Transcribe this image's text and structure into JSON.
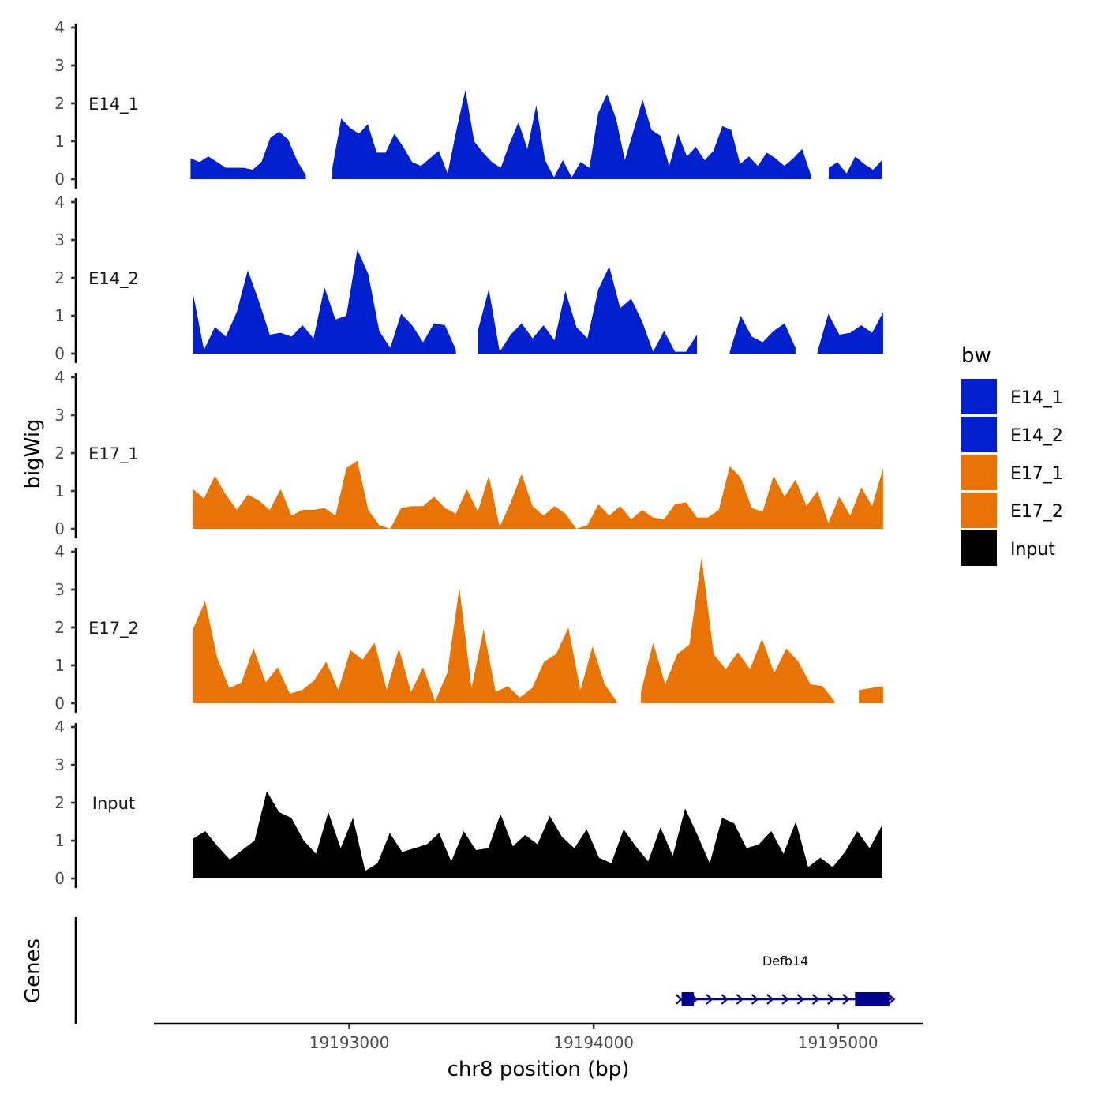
{
  "chart_data": {
    "type": "area",
    "title": "",
    "ylabel": "bigWig",
    "xlabel": "chr8 position (bp)",
    "genes_label": "Genes",
    "ylim": [
      0,
      4
    ],
    "y_ticks": [
      "0",
      "1",
      "2",
      "3",
      "4"
    ],
    "xlim": [
      19192200,
      19195350
    ],
    "x_ticks": [
      {
        "value": 19193000,
        "label": "19193000"
      },
      {
        "value": 19194000,
        "label": "19194000"
      },
      {
        "value": 19195000,
        "label": "19195000"
      }
    ],
    "legend": {
      "title": "bw",
      "position": "right",
      "entries": [
        {
          "label": "E14_1",
          "color": "#0020d0"
        },
        {
          "label": "E14_2",
          "color": "#0020d0"
        },
        {
          "label": "E17_1",
          "color": "#e87405"
        },
        {
          "label": "E17_2",
          "color": "#e87405"
        },
        {
          "label": "Input",
          "color": "#000000"
        }
      ]
    },
    "series": [
      {
        "name": "E14_1",
        "color": "#0020d0",
        "x_start": 19192350,
        "x_end": 19195180,
        "values": [
          0.55,
          0.45,
          0.6,
          0.45,
          0.3,
          0.3,
          0.3,
          0.25,
          0.45,
          1.1,
          1.25,
          1.05,
          0.5,
          0.1,
          null,
          null,
          0.3,
          1.6,
          1.35,
          1.2,
          1.45,
          0.7,
          0.7,
          1.2,
          0.85,
          0.45,
          0.35,
          0.55,
          0.75,
          0.15,
          1.3,
          2.35,
          1.0,
          0.7,
          0.45,
          0.3,
          0.95,
          1.5,
          0.8,
          1.95,
          0.5,
          0.05,
          0.5,
          0.05,
          0.45,
          0.3,
          1.75,
          2.25,
          1.6,
          0.5,
          1.3,
          2.1,
          1.3,
          1.15,
          0.35,
          1.2,
          0.6,
          0.85,
          0.5,
          0.75,
          1.4,
          1.3,
          0.4,
          0.6,
          0.35,
          0.7,
          0.55,
          0.35,
          0.55,
          0.8,
          0.1,
          null,
          0.3,
          0.45,
          0.15,
          0.6,
          0.4,
          0.25,
          0.5
        ]
      },
      {
        "name": "E14_2",
        "color": "#0020d0",
        "x_start": 19192360,
        "x_end": 19195185,
        "values": [
          1.6,
          0.1,
          0.7,
          0.45,
          1.1,
          2.2,
          1.4,
          0.5,
          0.55,
          0.45,
          0.75,
          0.4,
          1.75,
          0.9,
          1.0,
          2.75,
          2.1,
          0.6,
          0.15,
          1.05,
          0.75,
          0.3,
          0.8,
          0.75,
          0.1,
          null,
          0.6,
          1.7,
          0.05,
          0.5,
          0.8,
          0.4,
          0.75,
          0.35,
          1.65,
          0.7,
          0.4,
          1.7,
          2.3,
          1.2,
          1.45,
          0.85,
          0.05,
          0.6,
          0.05,
          0.05,
          0.5,
          null,
          null,
          0.05,
          1.0,
          0.45,
          0.3,
          0.6,
          0.8,
          0.15,
          null,
          0.05,
          1.05,
          0.5,
          0.55,
          0.75,
          0.55,
          1.1
        ]
      },
      {
        "name": "E17_1",
        "color": "#e87405",
        "x_start": 19192360,
        "x_end": 19195185,
        "values": [
          1.05,
          0.8,
          1.4,
          0.9,
          0.5,
          0.9,
          0.75,
          0.5,
          1.05,
          0.35,
          0.5,
          0.5,
          0.55,
          0.35,
          1.6,
          1.8,
          0.5,
          0.1,
          0.0,
          0.55,
          0.6,
          0.6,
          0.85,
          0.55,
          0.4,
          1.05,
          0.45,
          1.4,
          0.05,
          0.7,
          1.45,
          0.6,
          0.35,
          0.6,
          0.4,
          0.0,
          0.1,
          0.65,
          0.35,
          0.6,
          0.25,
          0.5,
          0.3,
          0.25,
          0.65,
          0.7,
          0.3,
          0.3,
          0.5,
          1.65,
          1.35,
          0.55,
          0.45,
          1.4,
          0.85,
          1.3,
          0.6,
          1.0,
          0.15,
          0.85,
          0.35,
          1.1,
          0.6,
          1.6
        ]
      },
      {
        "name": "E17_2",
        "color": "#e87405",
        "x_start": 19192360,
        "x_end": 19195185,
        "values": [
          1.95,
          2.7,
          1.2,
          0.4,
          0.55,
          1.45,
          0.55,
          0.95,
          0.25,
          0.35,
          0.6,
          1.1,
          0.35,
          1.4,
          1.15,
          1.6,
          0.35,
          1.45,
          0.3,
          0.95,
          0.05,
          0.8,
          3.05,
          0.4,
          1.95,
          0.3,
          0.45,
          0.15,
          0.4,
          1.1,
          1.3,
          2.0,
          0.35,
          1.5,
          0.5,
          0.05,
          null,
          0.3,
          1.6,
          0.5,
          1.3,
          1.55,
          3.85,
          1.3,
          0.9,
          1.35,
          0.9,
          1.7,
          0.8,
          1.45,
          1.1,
          0.5,
          0.45,
          0.05,
          null,
          0.35,
          0.4,
          0.45
        ]
      },
      {
        "name": "Input",
        "color": "#000000",
        "x_start": 19192360,
        "x_end": 19195180,
        "values": [
          1.05,
          1.25,
          0.85,
          0.5,
          0.75,
          1.0,
          2.3,
          1.75,
          1.6,
          1.0,
          0.65,
          1.75,
          0.8,
          1.6,
          0.2,
          0.4,
          1.2,
          0.7,
          0.8,
          0.9,
          1.2,
          0.45,
          1.25,
          0.75,
          0.8,
          1.7,
          0.85,
          1.15,
          0.9,
          1.65,
          1.1,
          0.8,
          1.3,
          0.55,
          0.4,
          1.3,
          0.85,
          0.45,
          1.35,
          0.6,
          1.85,
          1.15,
          0.4,
          1.6,
          1.45,
          0.8,
          0.9,
          1.25,
          0.65,
          1.5,
          0.3,
          0.55,
          0.3,
          0.7,
          1.25,
          0.8,
          1.4
        ]
      }
    ],
    "genes": [
      {
        "name": "Defb14",
        "start": 19194350,
        "end": 19195220,
        "strand": "+",
        "color": "#00008b",
        "exons": [
          [
            19194360,
            19194410
          ],
          [
            19195070,
            19195210
          ]
        ]
      }
    ]
  }
}
